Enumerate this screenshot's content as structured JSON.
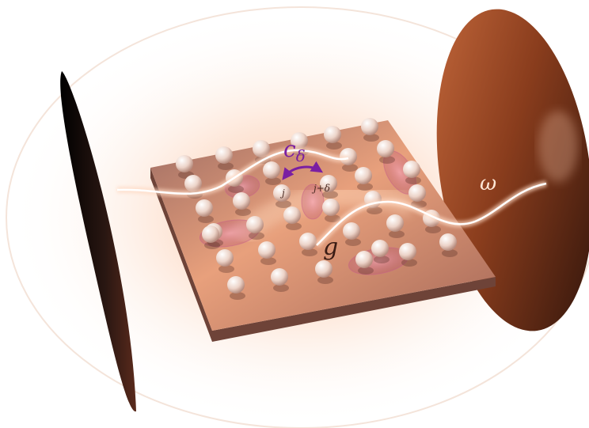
{
  "labels": {
    "coupling_symbol": "c",
    "coupling_subscript": "δ",
    "site_j": "j",
    "site_j_plus_delta": "j+δ",
    "light_matter_coupling": "g",
    "cavity_frequency": "ω"
  },
  "colors": {
    "background_glow": "#fbe3d2",
    "plate_top": "#c9836a",
    "plate_edge": "#6e4338",
    "mirror_left": "#1a0f0c",
    "mirror_right": "#7a3417",
    "hopping_arrow": "#7a1fa2",
    "light_beam": "#ffffff",
    "atom": "#f1dcd4",
    "trap_ellipse": "#d96a9a"
  }
}
